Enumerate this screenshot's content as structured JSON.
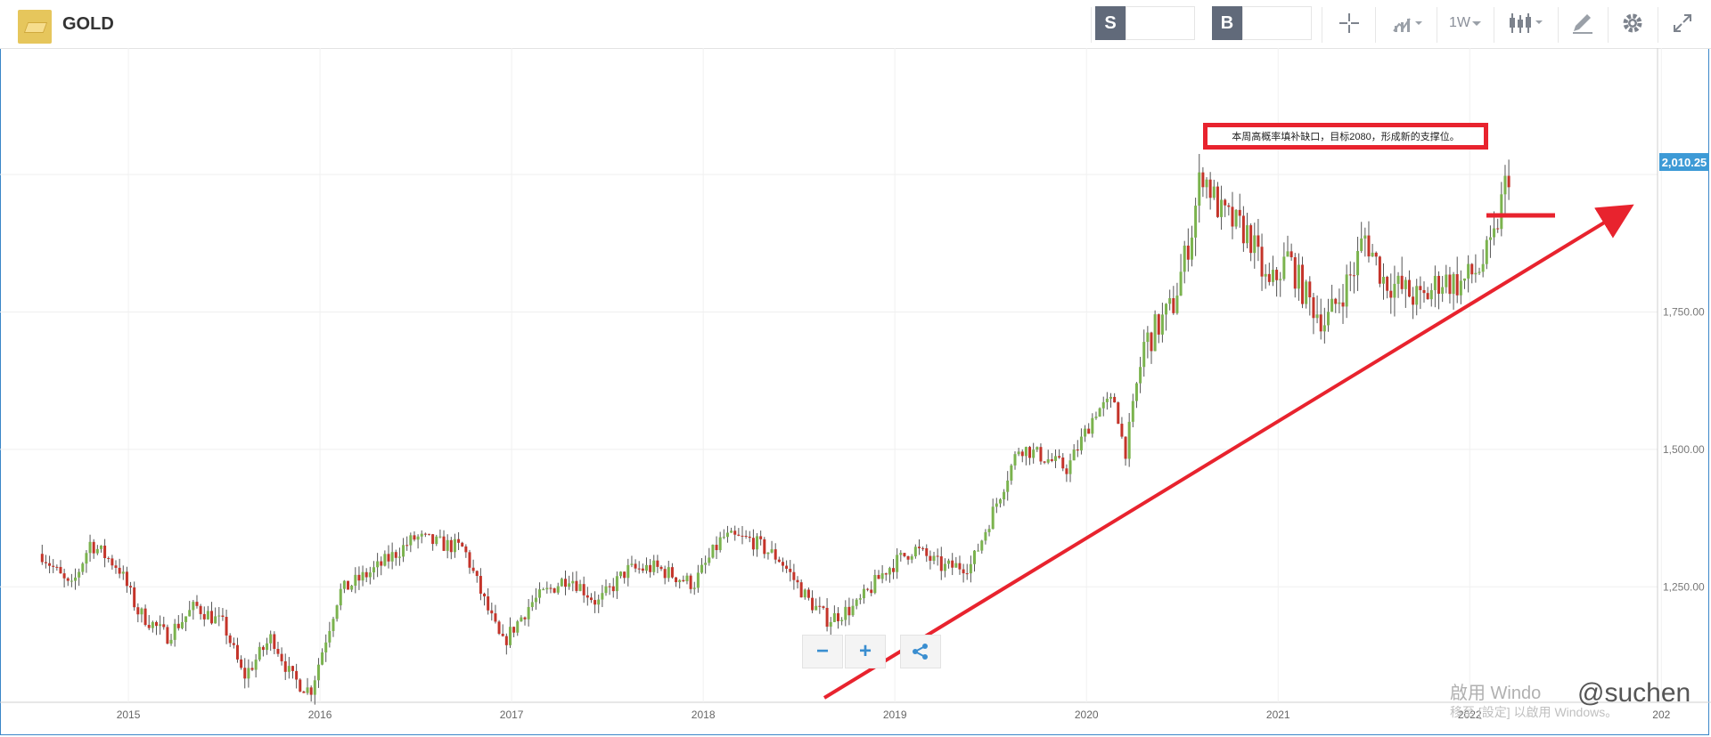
{
  "instrument": {
    "name": "GOLD",
    "icon": "gold-bar-icon"
  },
  "trade": {
    "sell_label": "S",
    "buy_label": "B",
    "sell_price": "",
    "buy_price": ""
  },
  "toolbar": {
    "crosshair_icon": "crosshair-icon",
    "chart_type_icon": "line-chart-icon",
    "timeframe_label": "1W",
    "candles_icon": "candlestick-icon",
    "draw_icon": "drawing-tool-icon",
    "settings_icon": "gear-icon",
    "fullscreen_icon": "expand-icon"
  },
  "chart_data": {
    "type": "candlestick",
    "title": "",
    "timeframe": "1W",
    "x_labels": [
      "2015",
      "2016",
      "2017",
      "2018",
      "2019",
      "2020",
      "2021",
      "2022",
      "202"
    ],
    "y_labels": [
      "1,250.00",
      "1,500.00",
      "1,750.00"
    ],
    "ylim": [
      1040,
      2230
    ],
    "last_price_label": "2,010.25",
    "last_price": 2010.25,
    "close_path": [
      [
        2014.55,
        1310
      ],
      [
        2014.7,
        1245
      ],
      [
        2014.8,
        1330
      ],
      [
        2014.95,
        1285
      ],
      [
        2015.05,
        1205
      ],
      [
        2015.2,
        1160
      ],
      [
        2015.35,
        1215
      ],
      [
        2015.5,
        1180
      ],
      [
        2015.6,
        1085
      ],
      [
        2015.75,
        1160
      ],
      [
        2015.85,
        1085
      ],
      [
        2015.95,
        1060
      ],
      [
        2016.1,
        1240
      ],
      [
        2016.3,
        1285
      ],
      [
        2016.5,
        1340
      ],
      [
        2016.6,
        1330
      ],
      [
        2016.75,
        1320
      ],
      [
        2016.85,
        1230
      ],
      [
        2016.95,
        1145
      ],
      [
        2017.1,
        1220
      ],
      [
        2017.3,
        1270
      ],
      [
        2017.45,
        1220
      ],
      [
        2017.6,
        1280
      ],
      [
        2017.75,
        1285
      ],
      [
        2017.95,
        1255
      ],
      [
        2018.1,
        1340
      ],
      [
        2018.25,
        1335
      ],
      [
        2018.4,
        1300
      ],
      [
        2018.55,
        1225
      ],
      [
        2018.65,
        1190
      ],
      [
        2018.8,
        1215
      ],
      [
        2018.95,
        1280
      ],
      [
        2019.1,
        1320
      ],
      [
        2019.25,
        1285
      ],
      [
        2019.4,
        1290
      ],
      [
        2019.55,
        1420
      ],
      [
        2019.65,
        1505
      ],
      [
        2019.75,
        1490
      ],
      [
        2019.9,
        1465
      ],
      [
        2020.05,
        1570
      ],
      [
        2020.15,
        1590
      ],
      [
        2020.2,
        1490
      ],
      [
        2020.3,
        1690
      ],
      [
        2020.45,
        1760
      ],
      [
        2020.55,
        1900
      ],
      [
        2020.6,
        2010
      ],
      [
        2020.7,
        1930
      ],
      [
        2020.85,
        1890
      ],
      [
        2020.95,
        1790
      ],
      [
        2021.05,
        1850
      ],
      [
        2021.15,
        1775
      ],
      [
        2021.25,
        1730
      ],
      [
        2021.4,
        1830
      ],
      [
        2021.45,
        1890
      ],
      [
        2021.55,
        1810
      ],
      [
        2021.65,
        1790
      ],
      [
        2021.75,
        1770
      ],
      [
        2021.85,
        1810
      ],
      [
        2021.95,
        1800
      ],
      [
        2022.05,
        1830
      ],
      [
        2022.12,
        1870
      ],
      [
        2022.18,
        1975
      ],
      [
        2022.21,
        2010
      ]
    ]
  },
  "annotation": {
    "text": "本周高概率填补缺口，目标2080，形成新的支撑位。"
  },
  "zoom": {
    "minus_icon": "zoom-out-icon",
    "plus_icon": "zoom-in-icon",
    "share_icon": "share-icon"
  },
  "watermark": {
    "line1": "啟用 Windo",
    "line2": "移至 [設定] 以啟用 Windows。",
    "handle": "@suchen"
  },
  "colors": {
    "up": "#7bb34e",
    "down": "#c4342a",
    "trendline": "#e8232e",
    "accent": "#3d9ad6"
  }
}
